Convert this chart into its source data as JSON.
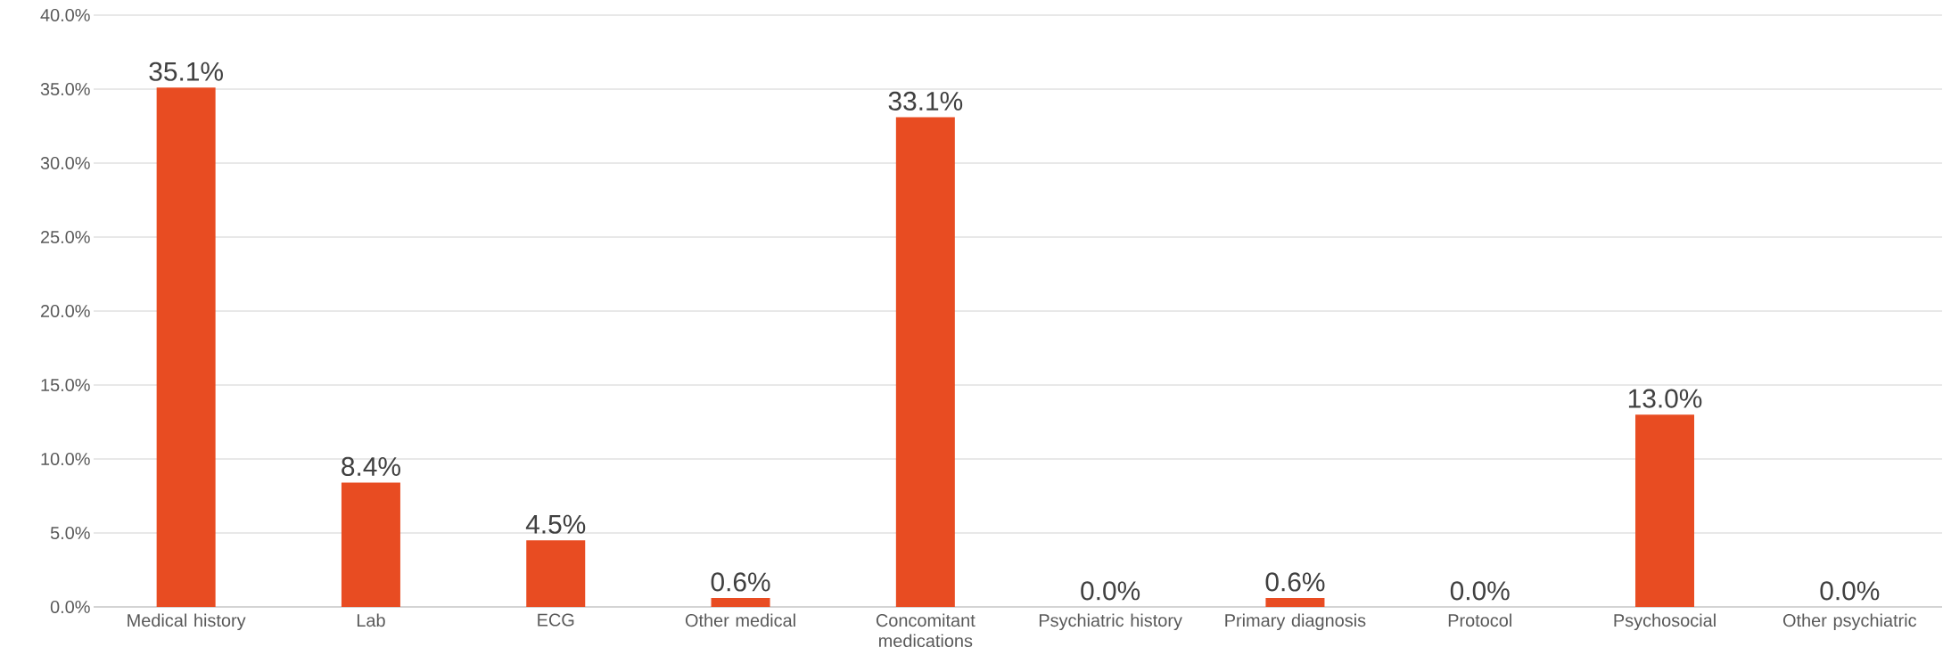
{
  "chart_data": {
    "type": "bar",
    "categories": [
      "Medical history",
      "Lab",
      "ECG",
      "Other medical",
      "Concomitant medications",
      "Psychiatric history",
      "Primary diagnosis",
      "Protocol",
      "Psychosocial",
      "Other psychiatric"
    ],
    "values": [
      35.1,
      8.4,
      4.5,
      0.6,
      33.1,
      0.0,
      0.6,
      0.0,
      13.0,
      0.0
    ],
    "value_labels": [
      "35.1%",
      "8.4%",
      "4.5%",
      "0.6%",
      "33.1%",
      "0.0%",
      "0.6%",
      "0.0%",
      "13.0%",
      "0.0%"
    ],
    "color": "#e84c22",
    "ylim": [
      0,
      40
    ],
    "yticks": [
      {
        "value": 0,
        "label": "0.0%"
      },
      {
        "value": 5,
        "label": "5.0%"
      },
      {
        "value": 10,
        "label": "10.0%"
      },
      {
        "value": 15,
        "label": "15.0%"
      },
      {
        "value": 20,
        "label": "20.0%"
      },
      {
        "value": 25,
        "label": "25.0%"
      },
      {
        "value": 30,
        "label": "30.0%"
      },
      {
        "value": 35,
        "label": "35.0%"
      },
      {
        "value": 40,
        "label": "40.0%"
      }
    ],
    "grid": "y"
  }
}
